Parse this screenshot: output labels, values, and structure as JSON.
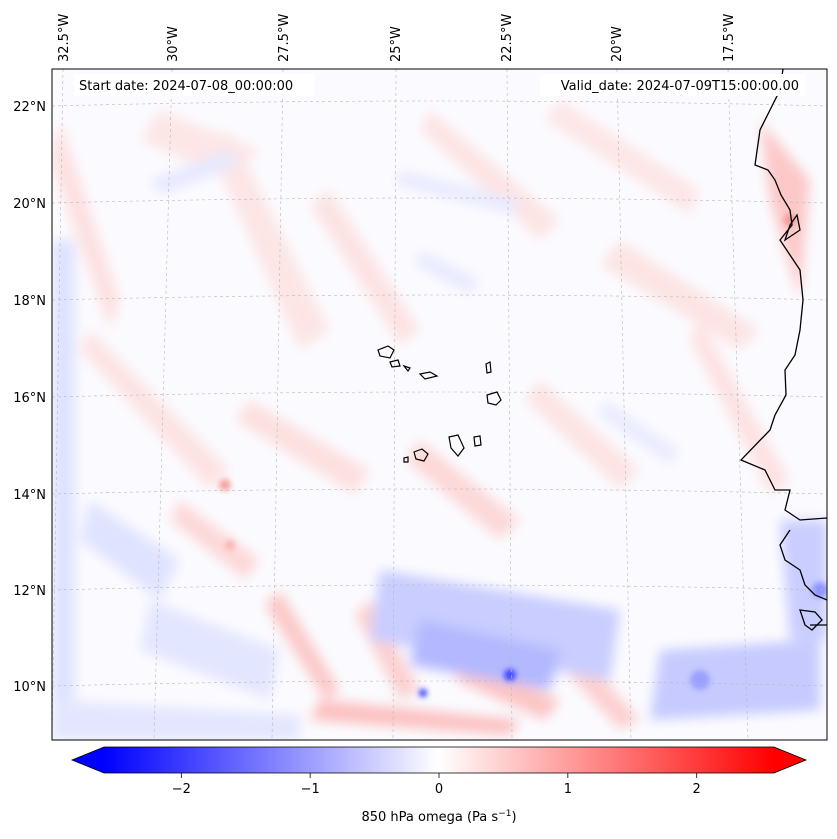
{
  "map": {
    "start_date_label": "Start date: 2024-07-08_00:00:00",
    "valid_date_label": "Valid_date: 2024-07-09T15:00:00.00",
    "lon_labels": [
      "32.5°W",
      "30°W",
      "27.5°W",
      "25°W",
      "22.5°W",
      "20°W",
      "17.5°W"
    ],
    "lat_labels": [
      "22°N",
      "20°N",
      "18°N",
      "16°N",
      "14°N",
      "12°N",
      "10°N"
    ],
    "field_variable": "850 hPa omega",
    "colormap": "bwr",
    "coastline_color": "#000000"
  },
  "colorbar": {
    "ticks": [
      "−2",
      "−1",
      "0",
      "1",
      "2"
    ],
    "tick_values": [
      -2,
      -1,
      0,
      1,
      2
    ],
    "range": [
      -2.6,
      2.6
    ],
    "label_main": "850 hPa omega (Pa s",
    "label_exp": "−1",
    "label_end": ")",
    "color_min": "#0000ff",
    "color_mid": "#ffffff",
    "color_max": "#ff0000"
  }
}
